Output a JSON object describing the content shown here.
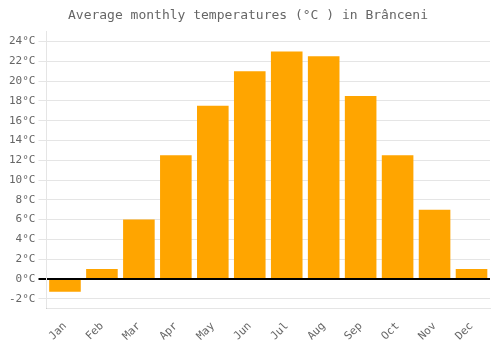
{
  "chart_data": {
    "type": "bar",
    "title": "Average monthly temperatures (°C ) in Brânceni",
    "categories": [
      "Jan",
      "Feb",
      "Mar",
      "Apr",
      "May",
      "Jun",
      "Jul",
      "Aug",
      "Sep",
      "Oct",
      "Nov",
      "Dec"
    ],
    "values": [
      -1.3,
      1.0,
      6.0,
      12.5,
      17.5,
      21.0,
      23.0,
      22.5,
      18.5,
      12.5,
      7.0,
      1.0
    ],
    "color": "#FFA500",
    "ylim": [
      -3,
      25
    ],
    "yticks": [
      {
        "value": -2,
        "label": "-2°C"
      },
      {
        "value": 0,
        "label": "0°C"
      },
      {
        "value": 2,
        "label": "2°C"
      },
      {
        "value": 4,
        "label": "4°C"
      },
      {
        "value": 6,
        "label": "6°C"
      },
      {
        "value": 8,
        "label": "8°C"
      },
      {
        "value": 10,
        "label": "10°C"
      },
      {
        "value": 12,
        "label": "12°C"
      },
      {
        "value": 14,
        "label": "14°C"
      },
      {
        "value": 16,
        "label": "16°C"
      },
      {
        "value": 18,
        "label": "18°C"
      },
      {
        "value": 20,
        "label": "20°C"
      },
      {
        "value": 22,
        "label": "22°C"
      },
      {
        "value": 24,
        "label": "24°C"
      }
    ],
    "grid": true
  }
}
